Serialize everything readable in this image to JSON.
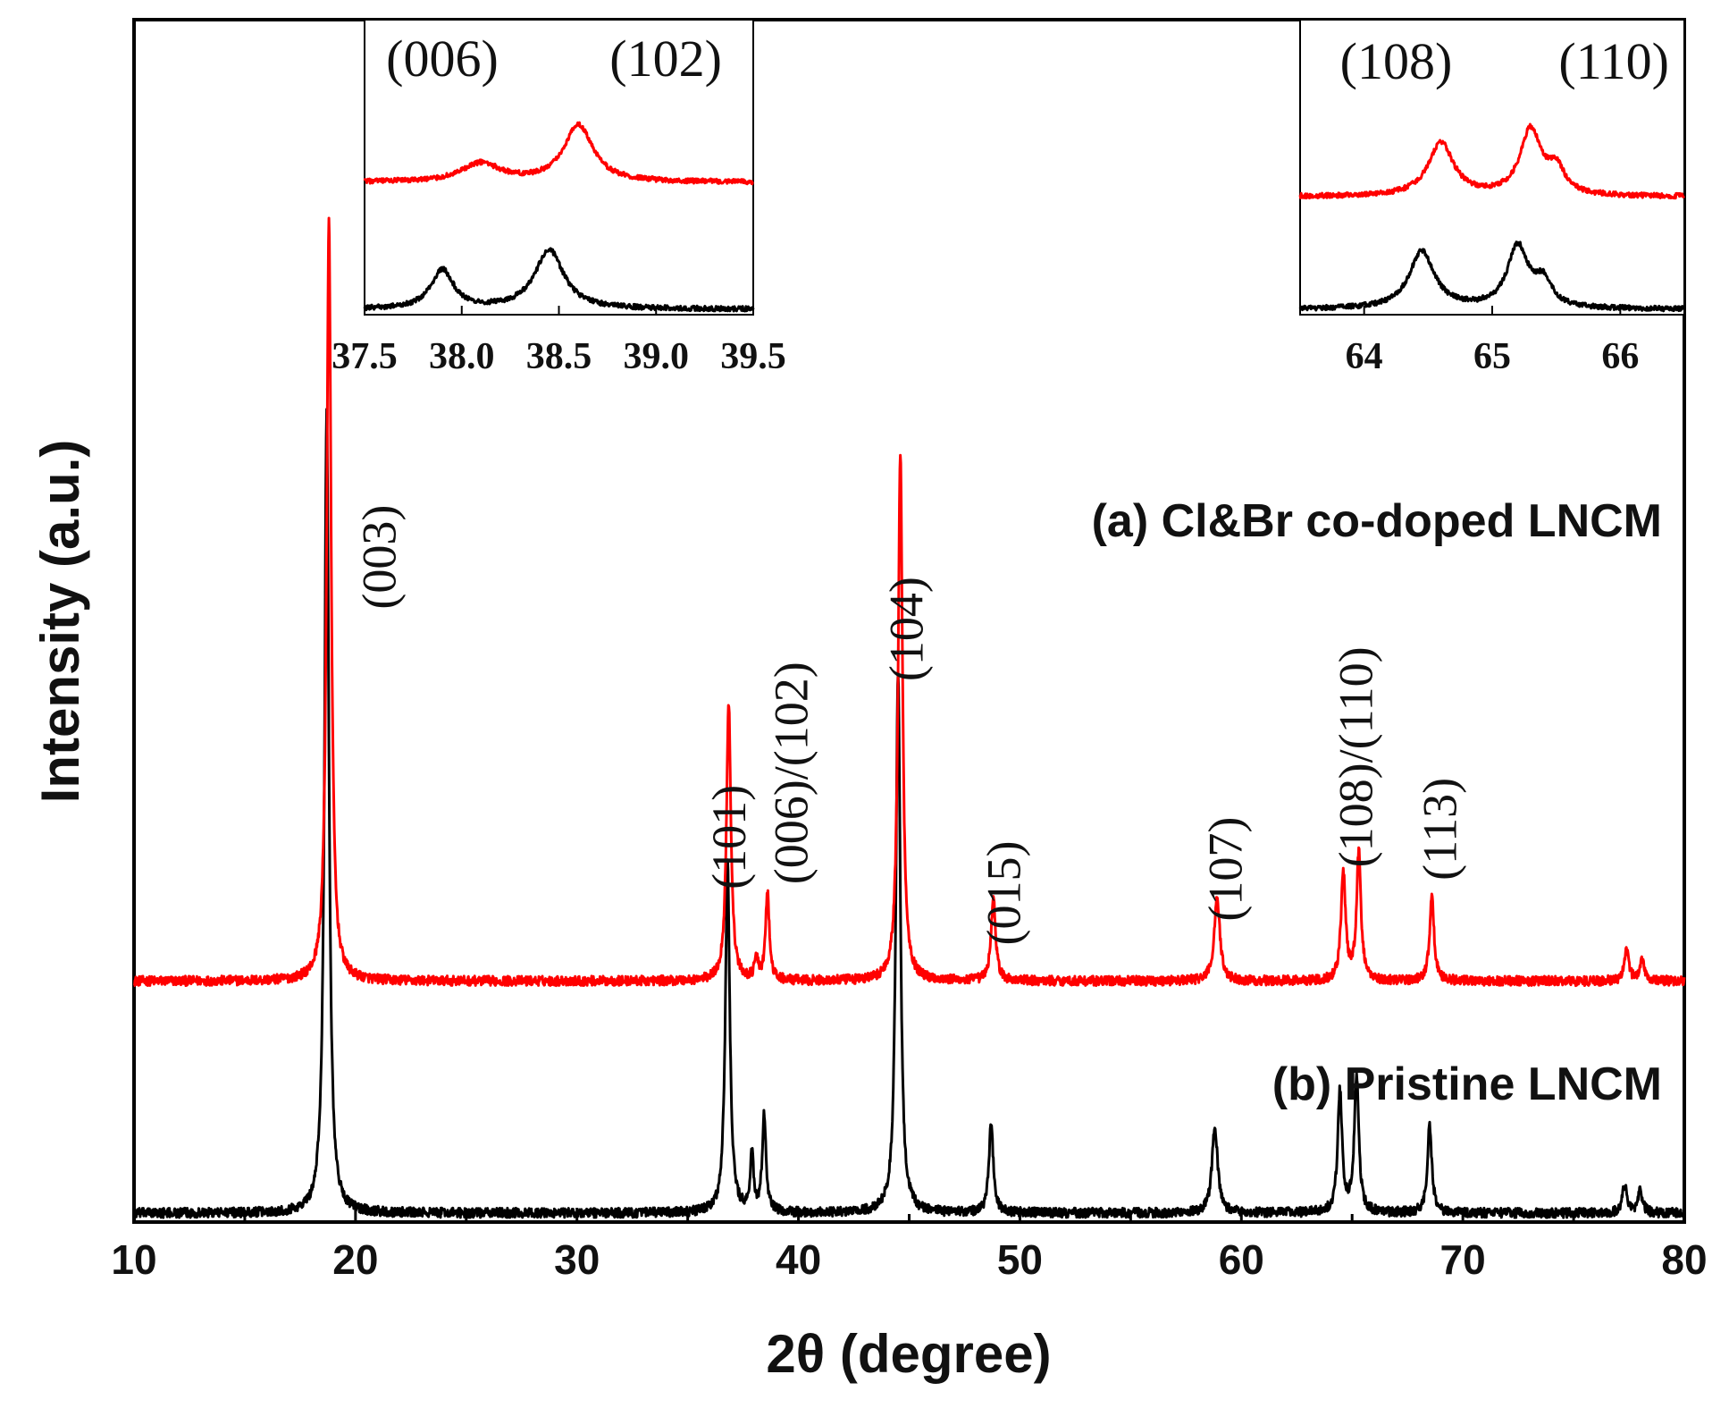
{
  "chart_data": {
    "type": "line",
    "title": "",
    "xlabel": "2θ (degree)",
    "ylabel": "Intensity (a.u.)",
    "xlim": [
      10,
      80
    ],
    "xticks": [
      10,
      20,
      30,
      40,
      50,
      60,
      70,
      80
    ],
    "xtick_labels": [
      "10",
      "20",
      "30",
      "40",
      "50",
      "60",
      "70",
      "80"
    ],
    "series": [
      {
        "name": "(a) Cl&Br co-doped LNCM",
        "color": "#ff0000",
        "baseline": 0.29,
        "noise": 0.006,
        "peaks": [
          {
            "x": 18.8,
            "height": 0.95,
            "width": 0.12
          },
          {
            "x": 36.85,
            "height": 0.35,
            "width": 0.12
          },
          {
            "x": 38.1,
            "height": 0.025,
            "width": 0.1
          },
          {
            "x": 38.6,
            "height": 0.11,
            "width": 0.1
          },
          {
            "x": 44.6,
            "height": 0.66,
            "width": 0.12
          },
          {
            "x": 48.8,
            "height": 0.105,
            "width": 0.12
          },
          {
            "x": 58.9,
            "height": 0.105,
            "width": 0.15
          },
          {
            "x": 64.6,
            "height": 0.135,
            "width": 0.12
          },
          {
            "x": 65.3,
            "height": 0.16,
            "width": 0.12
          },
          {
            "x": 68.6,
            "height": 0.105,
            "width": 0.12
          },
          {
            "x": 77.4,
            "height": 0.038,
            "width": 0.12
          },
          {
            "x": 78.1,
            "height": 0.028,
            "width": 0.12
          }
        ]
      },
      {
        "name": "(b) Pristine LNCM",
        "color": "#000000",
        "baseline": 0.0,
        "noise": 0.006,
        "peaks": [
          {
            "x": 18.7,
            "height": 1.0,
            "width": 0.12
          },
          {
            "x": 36.8,
            "height": 0.44,
            "width": 0.12
          },
          {
            "x": 37.9,
            "height": 0.07,
            "width": 0.09
          },
          {
            "x": 38.45,
            "height": 0.12,
            "width": 0.1
          },
          {
            "x": 44.5,
            "height": 0.68,
            "width": 0.12
          },
          {
            "x": 48.7,
            "height": 0.11,
            "width": 0.12
          },
          {
            "x": 58.8,
            "height": 0.11,
            "width": 0.15
          },
          {
            "x": 64.45,
            "height": 0.15,
            "width": 0.12
          },
          {
            "x": 65.2,
            "height": 0.17,
            "width": 0.12
          },
          {
            "x": 68.5,
            "height": 0.11,
            "width": 0.12
          },
          {
            "x": 77.3,
            "height": 0.035,
            "width": 0.12
          },
          {
            "x": 78.0,
            "height": 0.03,
            "width": 0.12
          }
        ]
      }
    ],
    "peak_labels": [
      {
        "text": "(003)",
        "x": 21.8,
        "y": 0.82
      },
      {
        "text": "(101)",
        "x": 37.6,
        "y": 0.47
      },
      {
        "text": "(006)/(102)",
        "x": 40.4,
        "y": 0.55
      },
      {
        "text": "(104)",
        "x": 45.6,
        "y": 0.73
      },
      {
        "text": "(015)",
        "x": 50.0,
        "y": 0.4
      },
      {
        "text": "(107)",
        "x": 60.0,
        "y": 0.43
      },
      {
        "text": "(108)/(110)",
        "x": 65.9,
        "y": 0.57
      },
      {
        "text": "(113)",
        "x": 69.7,
        "y": 0.48
      }
    ],
    "insets": [
      {
        "xlim": [
          37.5,
          39.5
        ],
        "xticks": [
          37.5,
          38.0,
          38.5,
          39.0,
          39.5
        ],
        "xtick_labels": [
          "37.5",
          "38.0",
          "38.5",
          "39.0",
          "39.5"
        ],
        "labels": [
          {
            "text": "(006)",
            "x": 37.9
          },
          {
            "text": "(102)",
            "x": 39.05
          }
        ],
        "series": [
          {
            "color": "#ff0000",
            "baseline": 0.62,
            "noise": 0.012,
            "peaks": [
              {
                "x": 38.1,
                "height": 0.09,
                "width": 0.12
              },
              {
                "x": 38.6,
                "height": 0.28,
                "width": 0.09
              }
            ]
          },
          {
            "color": "#000000",
            "baseline": 0.0,
            "noise": 0.012,
            "peaks": [
              {
                "x": 37.9,
                "height": 0.19,
                "width": 0.07
              },
              {
                "x": 38.45,
                "height": 0.29,
                "width": 0.09
              }
            ]
          }
        ]
      },
      {
        "xlim": [
          63.5,
          66.5
        ],
        "xticks": [
          64,
          65,
          66
        ],
        "xtick_labels": [
          "64",
          "65",
          "66"
        ],
        "labels": [
          {
            "text": "(108)",
            "x": 64.25
          },
          {
            "text": "(110)",
            "x": 65.95
          }
        ],
        "series": [
          {
            "color": "#ff0000",
            "baseline": 0.55,
            "noise": 0.012,
            "peaks": [
              {
                "x": 64.6,
                "height": 0.26,
                "width": 0.12
              },
              {
                "x": 65.3,
                "height": 0.32,
                "width": 0.1
              },
              {
                "x": 65.5,
                "height": 0.12,
                "width": 0.08
              }
            ]
          },
          {
            "color": "#000000",
            "baseline": 0.0,
            "noise": 0.012,
            "peaks": [
              {
                "x": 64.45,
                "height": 0.28,
                "width": 0.12
              },
              {
                "x": 65.2,
                "height": 0.3,
                "width": 0.1
              },
              {
                "x": 65.4,
                "height": 0.12,
                "width": 0.08
              }
            ]
          }
        ]
      }
    ]
  }
}
